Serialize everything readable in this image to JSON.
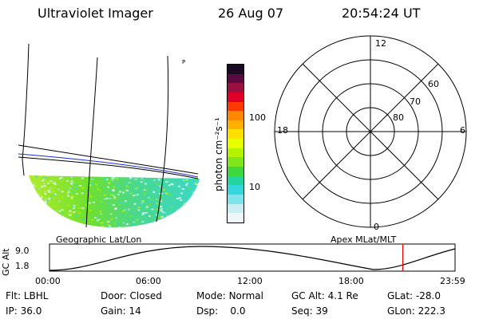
{
  "header": {
    "title": "Ultraviolet Imager",
    "date": "26 Aug 07",
    "time": "20:54:24 UT"
  },
  "geo_map": {
    "corner_mark": "P",
    "label": "Geographic Lat/Lon"
  },
  "colorbar": {
    "unit_label": "photon cm⁻²s⁻¹",
    "scale": "log",
    "ticks": [
      "100",
      "10"
    ],
    "colors": [
      "#1a0a24",
      "#5a0a40",
      "#9a1040",
      "#e0002a",
      "#ff3a00",
      "#ff8800",
      "#ffb000",
      "#ffe000",
      "#e8ff00",
      "#b4f200",
      "#7ee61a",
      "#3ed83c",
      "#22d4a0",
      "#34d8dc",
      "#7ee4ec",
      "#c8eef2",
      "#f0f6f8"
    ]
  },
  "polar": {
    "label": "Apex MLat/MLT",
    "mlt_labels": [
      "12",
      "18",
      "6",
      "0"
    ],
    "lat_labels": [
      "60",
      "70",
      "80"
    ]
  },
  "orbit": {
    "ylabel": "GC Alt",
    "yticks": [
      "9.0",
      "1.8"
    ],
    "xticks": [
      "00:00",
      "06:00",
      "12:00",
      "18:00",
      "23:59"
    ],
    "current_time_hours": 20.91
  },
  "info": [
    [
      {
        "label": "Flt:",
        "value": "LBHL"
      },
      {
        "label": "Door:",
        "value": "Closed"
      },
      {
        "label": "Mode:",
        "value": "Normal"
      },
      {
        "label": "GC Alt:",
        "value": "4.1 Re"
      },
      {
        "label": "GLat:",
        "value": "-28.0"
      }
    ],
    [
      {
        "label": "IP:",
        "value": "36.0"
      },
      {
        "label": "Gain:",
        "value": "14"
      },
      {
        "label": "Dsp:",
        "value": "0.0"
      },
      {
        "label": "Seq:",
        "value": "39"
      },
      {
        "label": "GLon:",
        "value": "222.3"
      }
    ]
  ]
}
